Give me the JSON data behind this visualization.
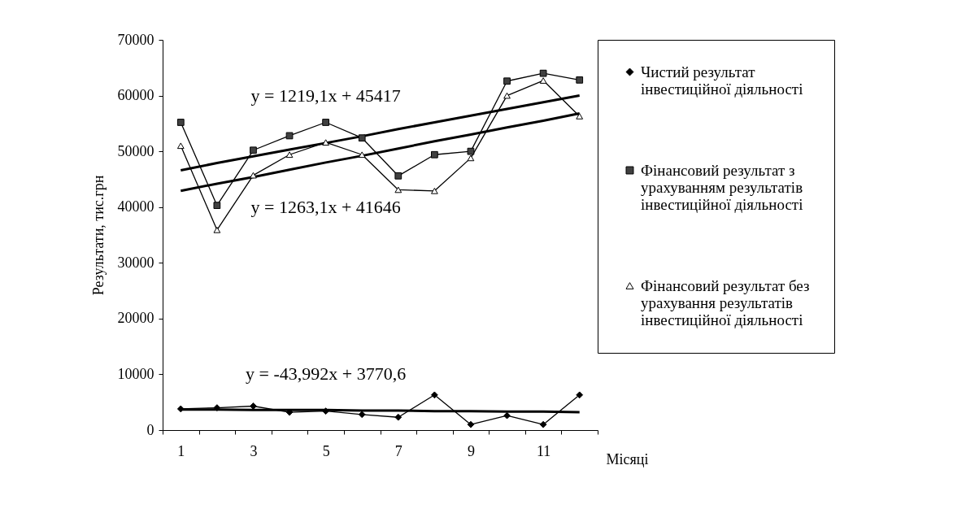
{
  "chart_data": {
    "type": "line",
    "xlabel": "Місяці",
    "ylabel": "Результати, тис.грн",
    "categories": [
      "1",
      null,
      "3",
      null,
      "5",
      null,
      "7",
      null,
      "9",
      null,
      "11",
      null
    ],
    "ylim": [
      0,
      70000
    ],
    "yticks": [
      0,
      10000,
      20000,
      30000,
      40000,
      50000,
      60000,
      70000
    ],
    "grid": false,
    "legend": "right",
    "series": [
      {
        "name": "Чистий результат інвестиційної діяльності",
        "color": "#000000",
        "marker": "diamond",
        "values": [
          3800,
          4000,
          4300,
          3200,
          3400,
          2800,
          2300,
          6300,
          1000,
          2600,
          1000,
          6300
        ]
      },
      {
        "name": "Фінансовий результат з урахуванням результатів інвестиційної діяльності",
        "color": "#404040",
        "marker": "square",
        "values": [
          55200,
          40300,
          50200,
          52800,
          55200,
          52400,
          45600,
          49400,
          50000,
          62600,
          64000,
          62800
        ]
      },
      {
        "name": "Фінансовий результат без урахування результатів інвестиційної діяльності",
        "color": "#ffffff",
        "marker": "triangle",
        "values": [
          51000,
          35900,
          45700,
          49400,
          51600,
          49400,
          43100,
          42900,
          48800,
          60000,
          62700,
          56300
        ]
      },
      {
        "type": "line",
        "color": "#000000",
        "marker": "none",
        "values": [
          46600,
          47900,
          49100,
          50300,
          51500,
          52700,
          54000,
          55200,
          56400,
          57600,
          58800,
          60000
        ]
      },
      {
        "type": "line",
        "color": "#000000",
        "marker": "none",
        "values": [
          42900,
          44200,
          45400,
          46700,
          48000,
          49200,
          50500,
          51800,
          53000,
          54300,
          55500,
          56800
        ]
      },
      {
        "type": "line",
        "color": "#000000",
        "marker": "none",
        "values": [
          3700,
          3700,
          3600,
          3600,
          3600,
          3500,
          3500,
          3400,
          3400,
          3300,
          3300,
          3200
        ]
      }
    ],
    "annotations": [
      "y = 1219,1x + 45417",
      "y = 1263,1x + 41646",
      "y = -43,992x + 3770,6"
    ]
  }
}
